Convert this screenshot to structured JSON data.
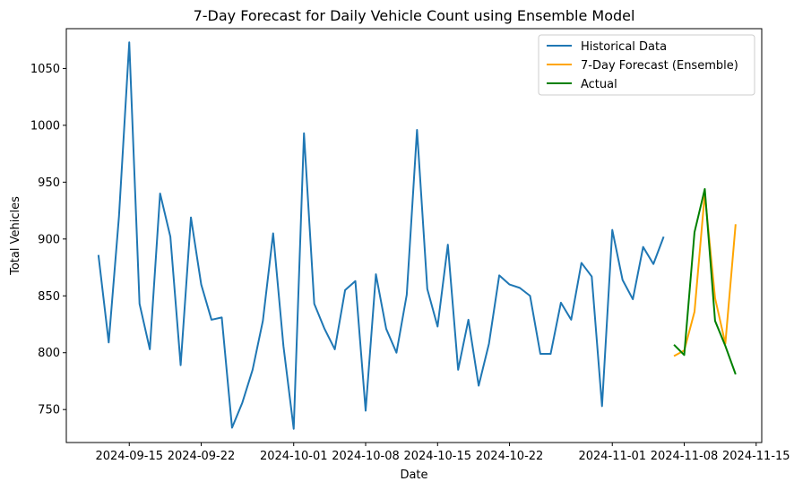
{
  "chart_data": {
    "type": "line",
    "title": "7-Day Forecast for Daily Vehicle Count using Ensemble Model",
    "xlabel": "Date",
    "ylabel": "Total Vehicles",
    "xlim": [
      "2024-09-08T21:00",
      "2024-11-15T13:00"
    ],
    "ylim": [
      721,
      1085
    ],
    "grid": false,
    "legend_position": "top-right",
    "x_ticks": [
      "2024-09-15",
      "2024-09-22",
      "2024-10-01",
      "2024-10-08",
      "2024-10-15",
      "2024-10-22",
      "2024-11-01",
      "2024-11-08",
      "2024-11-15"
    ],
    "y_ticks": [
      750,
      800,
      850,
      900,
      950,
      1000,
      1050
    ],
    "series": [
      {
        "name": "Historical Data",
        "color": "#1f77b4",
        "x": [
          "2024-09-12",
          "2024-09-13",
          "2024-09-14",
          "2024-09-15",
          "2024-09-16",
          "2024-09-17",
          "2024-09-18",
          "2024-09-19",
          "2024-09-20",
          "2024-09-21",
          "2024-09-22",
          "2024-09-23",
          "2024-09-24",
          "2024-09-25",
          "2024-09-26",
          "2024-09-27",
          "2024-09-28",
          "2024-09-29",
          "2024-09-30",
          "2024-10-01",
          "2024-10-02",
          "2024-10-03",
          "2024-10-04",
          "2024-10-05",
          "2024-10-06",
          "2024-10-07",
          "2024-10-08",
          "2024-10-09",
          "2024-10-10",
          "2024-10-11",
          "2024-10-12",
          "2024-10-13",
          "2024-10-14",
          "2024-10-15",
          "2024-10-16",
          "2024-10-17",
          "2024-10-18",
          "2024-10-19",
          "2024-10-20",
          "2024-10-21",
          "2024-10-22",
          "2024-10-23",
          "2024-10-24",
          "2024-10-25",
          "2024-10-26",
          "2024-10-27",
          "2024-10-28",
          "2024-10-29",
          "2024-10-30",
          "2024-10-31",
          "2024-11-01",
          "2024-11-02",
          "2024-11-03",
          "2024-11-04",
          "2024-11-05",
          "2024-11-06"
        ],
        "values": [
          886,
          809,
          920,
          1073,
          843,
          803,
          940,
          902,
          789,
          919,
          860,
          829,
          831,
          734,
          756,
          785,
          828,
          905,
          806,
          733,
          993,
          843,
          821,
          803,
          855,
          863,
          749,
          869,
          821,
          800,
          851,
          996,
          856,
          823,
          895,
          785,
          829,
          771,
          808,
          868,
          860,
          857,
          850,
          799,
          799,
          844,
          829,
          879,
          867,
          753,
          908,
          864,
          847,
          893,
          878,
          902
        ]
      },
      {
        "name": "7-Day Forecast (Ensemble)",
        "color": "#ffa500",
        "x": [
          "2024-11-07",
          "2024-11-08",
          "2024-11-09",
          "2024-11-10",
          "2024-11-11",
          "2024-11-12",
          "2024-11-13"
        ],
        "values": [
          797,
          802,
          836,
          940,
          848,
          808,
          913
        ]
      },
      {
        "name": "Actual",
        "color": "#008000",
        "x": [
          "2024-11-07",
          "2024-11-08",
          "2024-11-09",
          "2024-11-10",
          "2024-11-11",
          "2024-11-12",
          "2024-11-13"
        ],
        "values": [
          807,
          798,
          906,
          944,
          828,
          806,
          781
        ]
      }
    ]
  }
}
